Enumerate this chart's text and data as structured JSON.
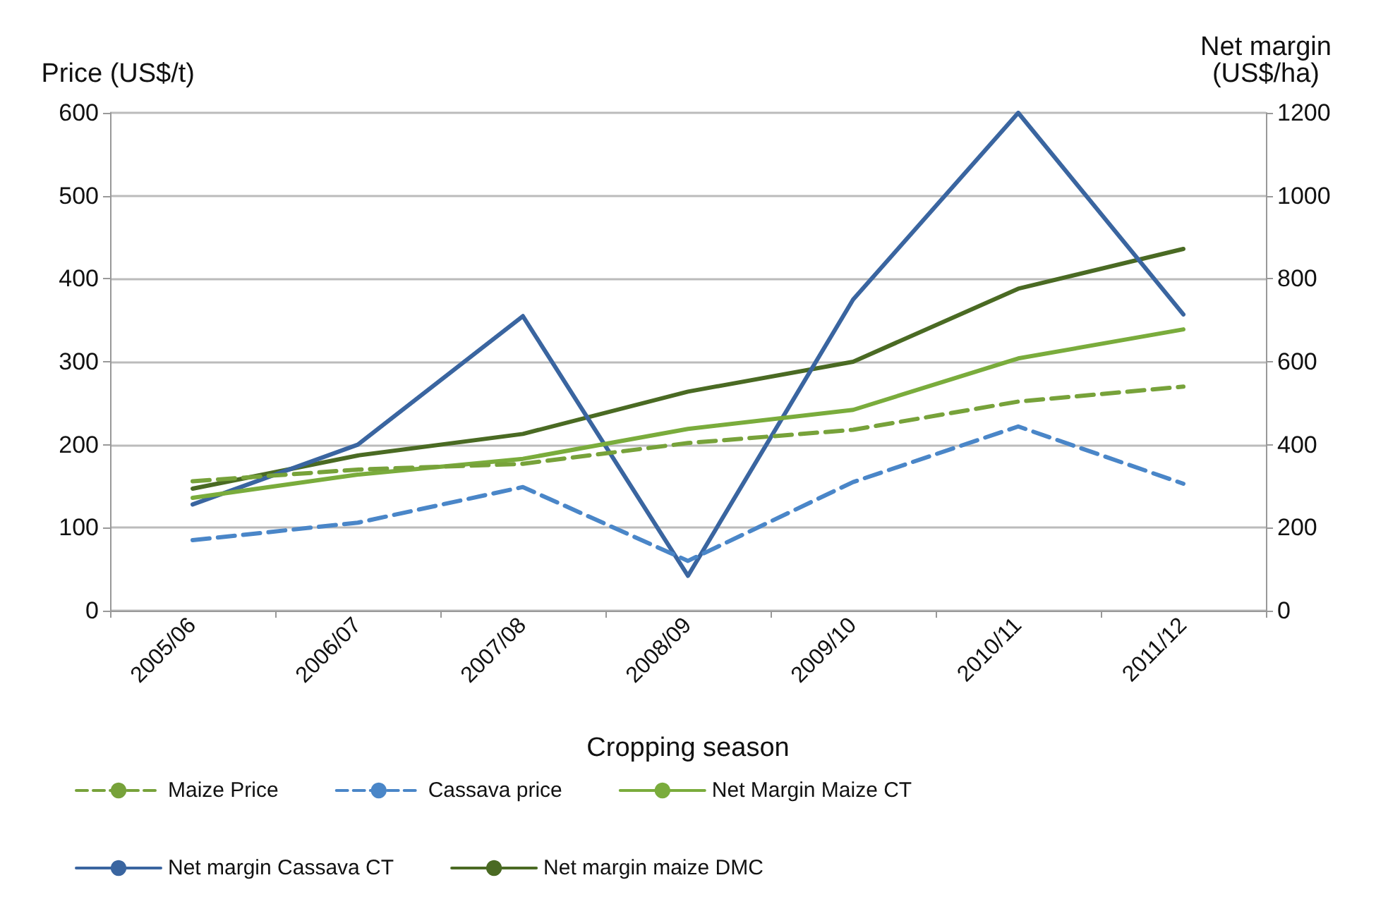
{
  "chart_data": {
    "type": "line",
    "xlabel": "Cropping season",
    "ylabel": "Price (US$/t)",
    "y2label": "Net margin\n(US$/ha)",
    "categories": [
      "2005/06",
      "2006/07",
      "2007/08",
      "2008/09",
      "2009/10",
      "2010/11",
      "2011/12"
    ],
    "series": [
      {
        "name": "Maize Price",
        "color": "#77a23a",
        "line_style": "dashed",
        "values": [
          156,
          170,
          177,
          202,
          218,
          252,
          270
        ]
      },
      {
        "name": "Cassava price",
        "color": "#4a86c8",
        "line_style": "dashed",
        "values": [
          85,
          106,
          149,
          60,
          155,
          222,
          153
        ]
      },
      {
        "name": "Net Margin Maize CT",
        "color": "#7aac3c",
        "line_style": "solid",
        "axis": "y2",
        "values": [
          272,
          328,
          366,
          438,
          484,
          608,
          678
        ]
      },
      {
        "name": "Net margin Cassava CT",
        "color": "#3a65a0",
        "line_style": "solid",
        "axis": "y2",
        "values": [
          256,
          400,
          710,
          84,
          750,
          1200,
          714
        ]
      },
      {
        "name": "Net margin maize DMC",
        "color": "#4a6a23",
        "line_style": "solid",
        "axis": "y2",
        "values": [
          294,
          374,
          426,
          528,
          600,
          776,
          872
        ]
      }
    ],
    "ylim": [
      0,
      600
    ],
    "yticks": [
      0,
      100,
      200,
      300,
      400,
      500,
      600
    ],
    "y2lim": [
      0,
      1200
    ],
    "y2ticks": [
      0,
      200,
      400,
      600,
      800,
      {
        "value": 1000,
        "label": "1000"
      },
      {
        "value": 1200,
        "label": "1200"
      }
    ],
    "grid": "y",
    "legend": "bottom",
    "marker": "none"
  }
}
